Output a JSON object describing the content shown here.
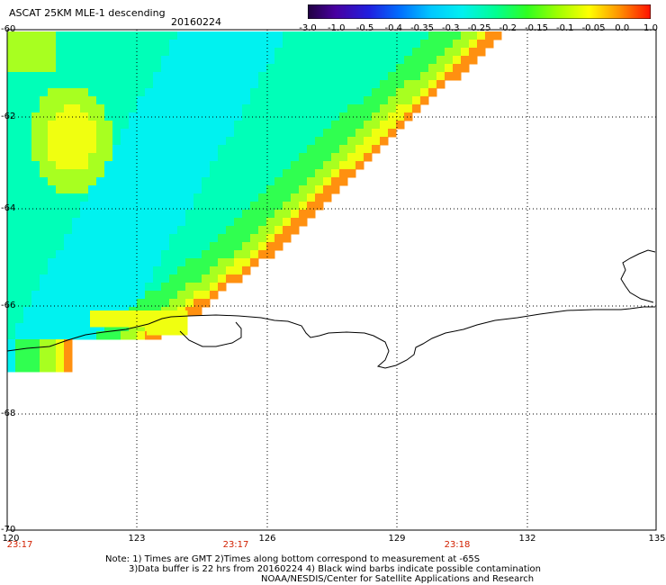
{
  "header": {
    "title": "ASCAT 25KM MLE-1 descending",
    "date": "20160224"
  },
  "colorbar": {
    "labels": [
      "-3.0",
      "-1.0",
      "-0.5",
      "-0.4",
      "-0.35",
      "-0.3",
      "-0.25",
      "-0.2",
      "-0.15",
      "-0.1",
      "-0.05",
      "0.0",
      "1.0"
    ],
    "colors": [
      "#200040",
      "#4800a0",
      "#2020e0",
      "#0060ff",
      "#00a8ff",
      "#00e8ff",
      "#00ffb0",
      "#00ff40",
      "#80ff00",
      "#e0ff00",
      "#ffc000",
      "#ff6000",
      "#ff1000"
    ]
  },
  "axes": {
    "lat_labels": [
      "-60",
      "-62",
      "-64",
      "-66",
      "-68",
      "-70"
    ],
    "lon_labels": [
      "120",
      "123",
      "126",
      "129",
      "132",
      "135"
    ],
    "lat_range": [
      -60,
      -70
    ],
    "lon_range": [
      120,
      135
    ]
  },
  "time_labels": [
    "23:17",
    "23:17",
    "23:18"
  ],
  "notes": {
    "line1": "Note: 1) Times are GMT 2)Times along bottom correspond to measurement at -65S",
    "line2": "3)Data buffer is 22 hrs from 20160224 4) Black wind barbs indicate possible contamination",
    "line3": "NOAA/NESDIS/Center for Satellite Applications and Research"
  },
  "colors": {
    "background": "#ffffff",
    "coastline": "#000000",
    "time_text": "#d22000"
  }
}
